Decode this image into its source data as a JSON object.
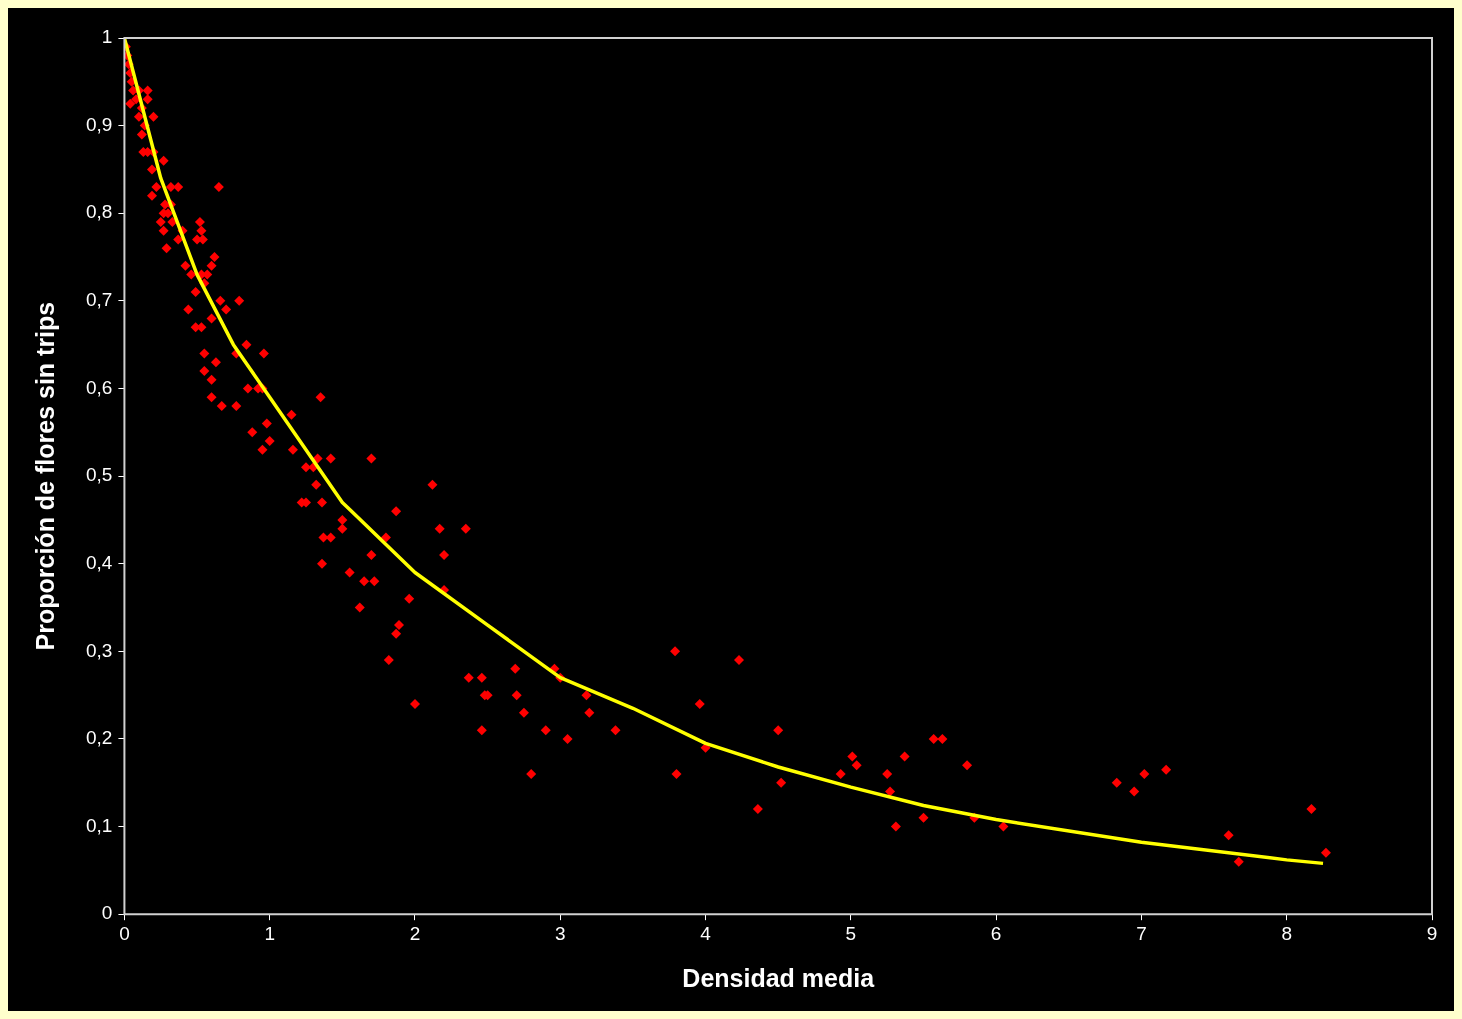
{
  "chart_data": {
    "type": "scatter",
    "xlabel": "Densidad media",
    "ylabel": "Proporción de flores sin trips",
    "xlim": [
      0,
      9
    ],
    "xticks": [
      0,
      1,
      2,
      3,
      4,
      5,
      6,
      7,
      8,
      9
    ],
    "ylim": [
      0,
      1
    ],
    "yticks": [
      0,
      {
        "value": 0.1,
        "label": "0,1"
      },
      {
        "value": 0.2,
        "label": "0,2"
      },
      {
        "value": 0.3,
        "label": "0,3"
      },
      {
        "value": 0.4,
        "label": "0,4"
      },
      {
        "value": 0.5,
        "label": "0,5"
      },
      {
        "value": 0.6,
        "label": "0,6"
      },
      {
        "value": 0.7,
        "label": "0,7"
      },
      {
        "value": 0.8,
        "label": "0,8"
      },
      {
        "value": 0.9,
        "label": "0,9"
      },
      1
    ],
    "grid": false,
    "legend": false,
    "series": [
      {
        "type": "scatter",
        "color": "#ff0000",
        "marker": "diamond",
        "x": [
          0.01,
          0.02,
          0.03,
          0.04,
          0.05,
          0.06,
          0.04,
          0.08,
          0.1,
          0.12,
          0.16,
          0.16,
          0.1,
          0.14,
          0.12,
          0.2,
          0.13,
          0.16,
          0.2,
          0.19,
          0.19,
          0.22,
          0.27,
          0.25,
          0.27,
          0.28,
          0.3,
          0.32,
          0.33,
          0.27,
          0.29,
          0.32,
          0.37,
          0.37,
          0.4,
          0.42,
          0.46,
          0.49,
          0.5,
          0.52,
          0.53,
          0.54,
          0.44,
          0.53,
          0.55,
          0.57,
          0.6,
          0.62,
          0.65,
          0.49,
          0.53,
          0.6,
          0.66,
          0.7,
          0.55,
          0.55,
          0.63,
          0.6,
          0.6,
          0.67,
          0.79,
          0.77,
          0.77,
          0.84,
          0.85,
          0.92,
          0.95,
          0.96,
          0.88,
          0.95,
          0.98,
          1.0,
          1.15,
          1.16,
          1.22,
          1.25,
          1.25,
          1.3,
          1.33,
          1.32,
          1.35,
          1.42,
          1.36,
          1.37,
          1.36,
          1.42,
          1.5,
          1.5,
          1.55,
          1.62,
          1.65,
          1.7,
          1.7,
          1.72,
          1.8,
          1.82,
          1.87,
          1.87,
          1.89,
          1.96,
          2.0,
          2.12,
          2.17,
          2.2,
          2.2,
          2.35,
          2.37,
          2.46,
          2.46,
          2.48,
          2.5,
          2.69,
          2.7,
          2.75,
          2.8,
          2.9,
          2.96,
          3.0,
          3.05,
          3.18,
          3.2,
          3.38,
          3.79,
          3.8,
          3.96,
          4.0,
          4.23,
          4.36,
          4.5,
          4.52,
          4.93,
          5.01,
          5.04,
          5.25,
          5.27,
          5.31,
          5.37,
          5.5,
          5.57,
          5.63,
          5.8,
          5.85,
          6.05,
          6.83,
          6.95,
          7.02,
          7.17,
          7.6,
          7.67,
          8.17,
          8.27
        ],
        "values": [
          0.99,
          0.98,
          0.97,
          0.96,
          0.95,
          0.94,
          0.925,
          0.93,
          0.94,
          0.92,
          0.94,
          0.93,
          0.91,
          0.9,
          0.89,
          0.91,
          0.87,
          0.87,
          0.87,
          0.85,
          0.82,
          0.83,
          0.86,
          0.79,
          0.8,
          0.81,
          0.8,
          0.81,
          0.79,
          0.78,
          0.76,
          0.83,
          0.83,
          0.77,
          0.78,
          0.74,
          0.73,
          0.71,
          0.77,
          0.79,
          0.78,
          0.77,
          0.69,
          0.73,
          0.72,
          0.73,
          0.74,
          0.75,
          0.83,
          0.67,
          0.67,
          0.68,
          0.7,
          0.69,
          0.64,
          0.62,
          0.63,
          0.61,
          0.59,
          0.58,
          0.7,
          0.64,
          0.58,
          0.65,
          0.6,
          0.6,
          0.6,
          0.64,
          0.55,
          0.53,
          0.56,
          0.54,
          0.57,
          0.53,
          0.47,
          0.47,
          0.51,
          0.51,
          0.52,
          0.49,
          0.59,
          0.52,
          0.47,
          0.43,
          0.4,
          0.43,
          0.45,
          0.44,
          0.39,
          0.35,
          0.38,
          0.52,
          0.41,
          0.38,
          0.43,
          0.29,
          0.46,
          0.32,
          0.33,
          0.36,
          0.24,
          0.49,
          0.44,
          0.41,
          0.37,
          0.44,
          0.27,
          0.27,
          0.21,
          0.25,
          0.25,
          0.28,
          0.25,
          0.23,
          0.16,
          0.21,
          0.28,
          0.27,
          0.2,
          0.25,
          0.23,
          0.21,
          0.3,
          0.16,
          0.24,
          0.19,
          0.29,
          0.12,
          0.21,
          0.15,
          0.16,
          0.18,
          0.17,
          0.16,
          0.14,
          0.1,
          0.18,
          0.11,
          0.2,
          0.2,
          0.17,
          0.11,
          0.1,
          0.15,
          0.14,
          0.16,
          0.165,
          0.09,
          0.06,
          0.12,
          0.07
        ]
      },
      {
        "type": "line",
        "color": "#ffff00",
        "x": [
          0,
          0.25,
          0.5,
          0.75,
          1,
          1.5,
          2,
          2.5,
          3,
          3.5,
          4,
          4.5,
          5,
          5.5,
          6,
          7,
          8,
          8.25
        ],
        "values": [
          1,
          0.84,
          0.73,
          0.65,
          0.59,
          0.47,
          0.39,
          0.33,
          0.27,
          0.235,
          0.195,
          0.168,
          0.145,
          0.124,
          0.108,
          0.082,
          0.062,
          0.058
        ]
      }
    ]
  }
}
